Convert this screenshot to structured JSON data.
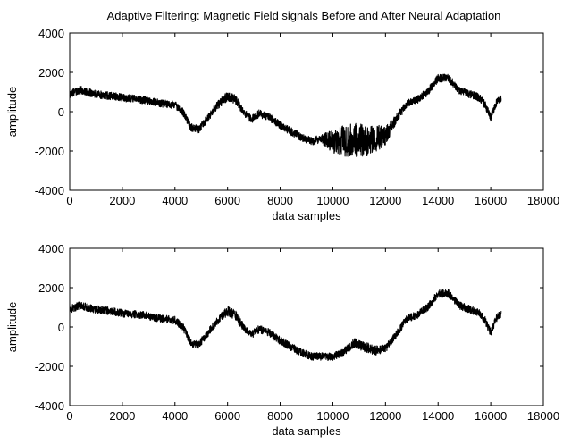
{
  "figure": {
    "title": "Adaptive Filtering: Magnetic Field signals Before and After Neural Adaptation"
  },
  "chart_data": [
    {
      "type": "line",
      "title": "Adaptive Filtering: Magnetic Field signals Before and After Neural Adaptation",
      "xlabel": "data samples",
      "ylabel": "amplitude",
      "xlim": [
        0,
        18000
      ],
      "ylim": [
        -4000,
        4000
      ],
      "xticks": [
        "0",
        "2000",
        "4000",
        "6000",
        "8000",
        "10000",
        "12000",
        "14000",
        "16000",
        "18000"
      ],
      "yticks": [
        "4000",
        "2000",
        "0",
        "-2000",
        "-4000"
      ],
      "grid": false,
      "legend": "none",
      "series_color": "#000000",
      "series": [
        {
          "x": [
            0,
            400,
            800,
            1200,
            1600,
            2000,
            2400,
            2800,
            3200,
            3600,
            4000,
            4300,
            4600,
            4900,
            5200,
            5600,
            6000,
            6300,
            6600,
            6900,
            7200,
            7600,
            8000,
            8400,
            8800,
            9200,
            9600,
            10000,
            10400,
            10800,
            11200,
            11600,
            12000,
            12400,
            12800,
            13200,
            13600,
            14000,
            14400,
            14800,
            15200,
            15600,
            15800,
            16000,
            16200,
            16400
          ],
          "y": [
            900,
            1100,
            950,
            850,
            800,
            700,
            650,
            600,
            500,
            400,
            350,
            0,
            -800,
            -900,
            -400,
            300,
            800,
            600,
            0,
            -400,
            -100,
            -300,
            -700,
            -1000,
            -1300,
            -1500,
            -1400,
            -1500,
            -1500,
            -1400,
            -1500,
            -1400,
            -1200,
            -400,
            400,
            600,
            1000,
            1700,
            1700,
            1100,
            900,
            700,
            300,
            -300,
            400,
            700
          ],
          "noise": [
            200,
            200,
            200,
            200,
            200,
            200,
            200,
            200,
            200,
            200,
            200,
            200,
            200,
            200,
            200,
            200,
            250,
            250,
            200,
            200,
            200,
            200,
            200,
            200,
            200,
            200,
            250,
            600,
            800,
            900,
            800,
            700,
            500,
            250,
            200,
            200,
            200,
            200,
            200,
            200,
            200,
            200,
            200,
            200,
            200,
            200
          ]
        }
      ]
    },
    {
      "type": "line",
      "xlabel": "data samples",
      "ylabel": "amplitude",
      "xlim": [
        0,
        18000
      ],
      "ylim": [
        -4000,
        4000
      ],
      "xticks": [
        "0",
        "2000",
        "4000",
        "6000",
        "8000",
        "10000",
        "12000",
        "14000",
        "16000",
        "18000"
      ],
      "yticks": [
        "4000",
        "2000",
        "0",
        "-2000",
        "-4000"
      ],
      "grid": false,
      "legend": "none",
      "series_color": "#000000",
      "series": [
        {
          "x": [
            0,
            400,
            800,
            1200,
            1600,
            2000,
            2400,
            2800,
            3200,
            3600,
            4000,
            4300,
            4600,
            4900,
            5200,
            5600,
            6000,
            6300,
            6600,
            6900,
            7200,
            7600,
            8000,
            8400,
            8800,
            9200,
            9600,
            10000,
            10400,
            10800,
            11200,
            11600,
            12000,
            12400,
            12800,
            13200,
            13600,
            14000,
            14400,
            14800,
            15200,
            15600,
            15800,
            16000,
            16200,
            16400
          ],
          "y": [
            900,
            1100,
            950,
            850,
            800,
            700,
            650,
            600,
            500,
            400,
            350,
            0,
            -800,
            -900,
            -400,
            300,
            800,
            600,
            0,
            -400,
            -100,
            -300,
            -700,
            -1000,
            -1300,
            -1500,
            -1500,
            -1500,
            -1300,
            -800,
            -1000,
            -1200,
            -1100,
            -400,
            400,
            600,
            1000,
            1700,
            1700,
            1100,
            900,
            700,
            300,
            -300,
            400,
            700
          ],
          "noise": [
            200,
            200,
            200,
            200,
            200,
            200,
            200,
            200,
            200,
            200,
            200,
            200,
            200,
            200,
            200,
            200,
            250,
            250,
            200,
            200,
            200,
            200,
            200,
            200,
            200,
            200,
            200,
            200,
            200,
            250,
            250,
            250,
            200,
            200,
            200,
            200,
            200,
            200,
            200,
            200,
            200,
            200,
            200,
            200,
            200,
            200
          ]
        }
      ]
    }
  ]
}
